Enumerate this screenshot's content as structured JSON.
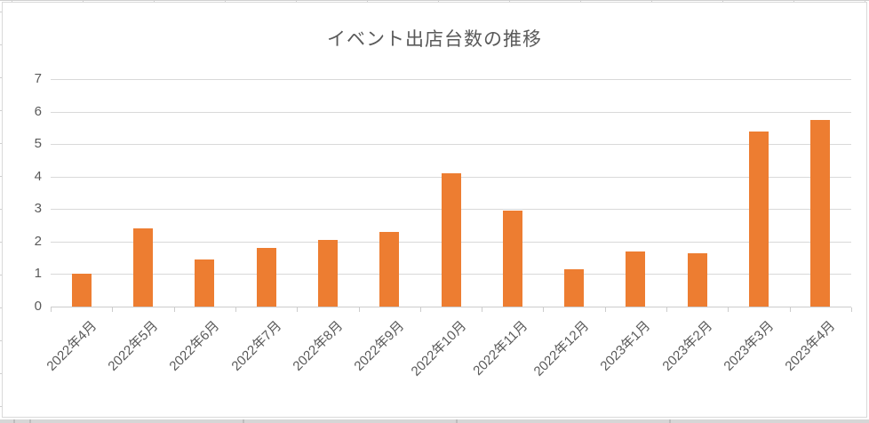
{
  "colors": {
    "bar": "#ED7D31",
    "text": "#595959",
    "gridline": "#D9D9D9",
    "axis": "#CCCCCC",
    "chart_border": "#D9D9D9",
    "sheet_line": "#D0D0D0"
  },
  "chart_data": {
    "type": "bar",
    "title": "イベント出店台数の推移",
    "categories": [
      "2022年4月",
      "2022年5月",
      "2022年6月",
      "2022年7月",
      "2022年8月",
      "2022年9月",
      "2022年10月",
      "2022年11月",
      "2022年12月",
      "2023年1月",
      "2023年2月",
      "2023年3月",
      "2023年4月"
    ],
    "values": [
      1.0,
      2.4,
      1.45,
      1.8,
      2.05,
      2.3,
      4.1,
      2.95,
      1.15,
      1.7,
      1.65,
      5.4,
      5.75
    ],
    "xlabel": "",
    "ylabel": "",
    "ylim": [
      0,
      7
    ],
    "yticks": [
      0,
      1,
      2,
      3,
      4,
      5,
      6,
      7
    ],
    "grid": true,
    "legend": false,
    "bar_color": "#ED7D31",
    "xlabel_rotation_deg": 45
  }
}
